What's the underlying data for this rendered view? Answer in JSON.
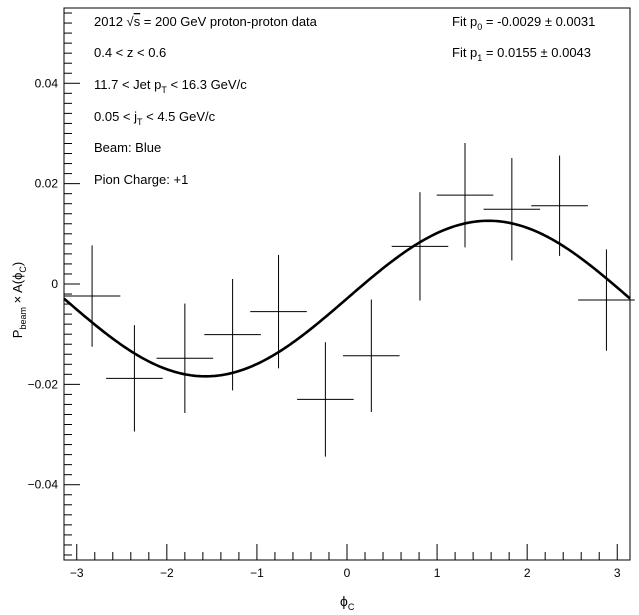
{
  "chart_data": {
    "type": "scatter",
    "xlabel": "ϕ",
    "xlabel_sub": "C",
    "ylabel_parts": {
      "p": "P",
      "p_sub": "beam",
      "times": " × A(",
      "phi": "ϕ",
      "phi_sub": "C",
      "close": ")"
    },
    "xlim": [
      -3.1416,
      3.1416
    ],
    "ylim": [
      -0.055,
      0.055
    ],
    "x_ticks": [
      -3,
      -2,
      -1,
      0,
      1,
      2,
      3
    ],
    "y_ticks": [
      -0.04,
      -0.02,
      0,
      0.02,
      0.04
    ],
    "x_tick_labels": [
      "−3",
      "−2",
      "−1",
      "0",
      "1",
      "2",
      "3"
    ],
    "y_tick_labels": [
      "−0.04",
      "−0.02",
      "0",
      "0.02",
      "0.04"
    ],
    "grid": false,
    "points": [
      {
        "x": -2.83,
        "y": -0.0024,
        "xerr": 0.314,
        "yerr": 0.0101
      },
      {
        "x": -2.36,
        "y": -0.0188,
        "xerr": 0.314,
        "yerr": 0.0106
      },
      {
        "x": -1.8,
        "y": -0.0148,
        "xerr": 0.314,
        "yerr": 0.0109
      },
      {
        "x": -1.27,
        "y": -0.0101,
        "xerr": 0.314,
        "yerr": 0.0111
      },
      {
        "x": -0.76,
        "y": -0.0055,
        "xerr": 0.314,
        "yerr": 0.0113
      },
      {
        "x": -0.24,
        "y": -0.023,
        "xerr": 0.314,
        "yerr": 0.0114
      },
      {
        "x": 0.27,
        "y": -0.0143,
        "xerr": 0.314,
        "yerr": 0.0112
      },
      {
        "x": 0.81,
        "y": 0.0075,
        "xerr": 0.314,
        "yerr": 0.0108
      },
      {
        "x": 1.31,
        "y": 0.0177,
        "xerr": 0.314,
        "yerr": 0.0104
      },
      {
        "x": 1.83,
        "y": 0.0149,
        "xerr": 0.314,
        "yerr": 0.0102
      },
      {
        "x": 2.36,
        "y": 0.0156,
        "xerr": 0.314,
        "yerr": 0.01
      },
      {
        "x": 2.88,
        "y": -0.0032,
        "xerr": 0.314,
        "yerr": 0.0101
      }
    ],
    "fit": {
      "p0": -0.0029,
      "p1": 0.0155
    }
  },
  "annotations": {
    "line1_pre": "2012 ",
    "line1_sqrt": "√",
    "line1_s": "s",
    "line1_post": " = 200 GeV proton-proton data",
    "line2": "0.4 < z < 0.6",
    "line3_pre": "11.7 < Jet p",
    "line3_sub": "T",
    "line3_post": " < 16.3 GeV/c",
    "line4_pre": "0.05 < j",
    "line4_sub": "T",
    "line4_post": " < 4.5 GeV/c",
    "line5": "Beam: Blue",
    "line6": "Pion Charge: +1",
    "fit0_pre": "Fit p",
    "fit0_sub": "0",
    "fit0_post": " = -0.0029 ± 0.0031",
    "fit1_pre": "Fit p",
    "fit1_sub": "1",
    "fit1_post": " = 0.0155 ± 0.0043"
  }
}
